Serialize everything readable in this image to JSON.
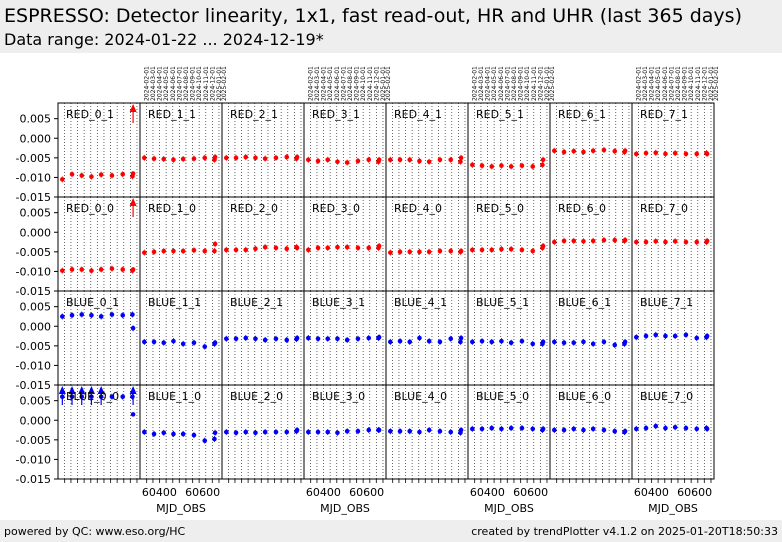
{
  "header": {
    "title": "ESPRESSO: Detector linearity, 1x1, fast read-out, HR and UHR (last 365 days)",
    "subtitle": "Data range: 2024-01-22 ... 2024-12-19*"
  },
  "footer": {
    "left": "powered by QC: www.eso.org/HC",
    "right": "created by trendPlotter v4.1.2 on 2025-01-20T18:50:33"
  },
  "colors": {
    "red": "#ff0000",
    "blue": "#0000ff",
    "band": "#eeeeee"
  },
  "chart_data": {
    "type": "scatter",
    "xlabel": "MJD_OBS",
    "xlim": [
      60310,
      60690
    ],
    "ylim": [
      -0.015,
      0.009
    ],
    "yticks": [
      0.005,
      0.0,
      -0.005,
      -0.01,
      -0.015
    ],
    "ytick_labels": [
      "0.005",
      "0.000",
      "-0.005",
      "-0.010",
      "-0.015"
    ],
    "xticks": [
      60400,
      60600
    ],
    "xtick_labels": [
      "60400",
      "60600"
    ],
    "date_labels": [
      "2024-02-01",
      "2024-03-01",
      "2024-04-01",
      "2024-05-01",
      "2024-06-01",
      "2024-07-01",
      "2024-08-01",
      "2024-09-01",
      "2024-10-01",
      "2024-11-01",
      "2024-12-01",
      "2025-01-01",
      "2025-02-01"
    ],
    "date_mjd": [
      60341,
      60370,
      60401,
      60431,
      60462,
      60492,
      60523,
      60554,
      60584,
      60615,
      60645,
      60676,
      60707
    ],
    "x": [
      60330,
      60375,
      60420,
      60465,
      60510,
      60560,
      60610,
      60655,
      60658
    ],
    "panels": [
      {
        "label": "RED_0_1",
        "color": "red",
        "y": [
          -0.0105,
          -0.0092,
          -0.0095,
          -0.0098,
          -0.0093,
          -0.0095,
          -0.0092,
          -0.0097,
          -0.009
        ],
        "arrows": [
          60658
        ]
      },
      {
        "label": "RED_1_1",
        "color": "red",
        "y": [
          -0.005,
          -0.0052,
          -0.0053,
          -0.0055,
          -0.0053,
          -0.0052,
          -0.005,
          -0.0055,
          -0.0048
        ],
        "arrows": []
      },
      {
        "label": "RED_2_1",
        "color": "red",
        "y": [
          -0.005,
          -0.005,
          -0.0048,
          -0.005,
          -0.0052,
          -0.005,
          -0.0048,
          -0.0052,
          -0.0048
        ],
        "arrows": []
      },
      {
        "label": "RED_3_1",
        "color": "red",
        "y": [
          -0.0055,
          -0.0058,
          -0.0055,
          -0.006,
          -0.0062,
          -0.0058,
          -0.0055,
          -0.006,
          -0.0055
        ],
        "arrows": []
      },
      {
        "label": "RED_4_1",
        "color": "red",
        "y": [
          -0.0055,
          -0.0055,
          -0.0055,
          -0.0058,
          -0.006,
          -0.0055,
          -0.0055,
          -0.006,
          -0.005
        ],
        "arrows": []
      },
      {
        "label": "RED_5_1",
        "color": "red",
        "y": [
          -0.0068,
          -0.007,
          -0.0072,
          -0.007,
          -0.0072,
          -0.007,
          -0.0072,
          -0.0068,
          -0.0055
        ],
        "arrows": []
      },
      {
        "label": "RED_6_1",
        "color": "red",
        "y": [
          -0.0032,
          -0.0035,
          -0.0033,
          -0.0035,
          -0.0032,
          -0.003,
          -0.0033,
          -0.0035,
          -0.0032
        ],
        "arrows": []
      },
      {
        "label": "RED_7_1",
        "color": "red",
        "y": [
          -0.004,
          -0.0038,
          -0.0037,
          -0.004,
          -0.0038,
          -0.004,
          -0.004,
          -0.0038,
          -0.004
        ],
        "arrows": []
      },
      {
        "label": "RED_0_0",
        "color": "red",
        "y": [
          -0.0098,
          -0.0095,
          -0.0095,
          -0.0098,
          -0.0095,
          -0.0093,
          -0.0095,
          -0.0098,
          -0.0095
        ],
        "arrows": [
          60658
        ]
      },
      {
        "label": "RED_1_0",
        "color": "red",
        "y": [
          -0.0052,
          -0.005,
          -0.0048,
          -0.0048,
          -0.0048,
          -0.0046,
          -0.0048,
          -0.0048,
          -0.003
        ],
        "arrows": []
      },
      {
        "label": "RED_2_0",
        "color": "red",
        "y": [
          -0.0045,
          -0.0045,
          -0.0045,
          -0.0042,
          -0.0038,
          -0.004,
          -0.0042,
          -0.0038,
          -0.004
        ],
        "arrows": []
      },
      {
        "label": "RED_3_0",
        "color": "red",
        "y": [
          -0.0045,
          -0.004,
          -0.004,
          -0.0038,
          -0.0038,
          -0.004,
          -0.004,
          -0.004,
          -0.0035
        ],
        "arrows": []
      },
      {
        "label": "RED_4_0",
        "color": "red",
        "y": [
          -0.0052,
          -0.005,
          -0.005,
          -0.005,
          -0.005,
          -0.0048,
          -0.0048,
          -0.005,
          -0.0048
        ],
        "arrows": []
      },
      {
        "label": "RED_5_0",
        "color": "red",
        "y": [
          -0.0045,
          -0.0045,
          -0.0045,
          -0.0043,
          -0.0043,
          -0.0045,
          -0.0048,
          -0.004,
          -0.0035
        ],
        "arrows": []
      },
      {
        "label": "RED_6_0",
        "color": "red",
        "y": [
          -0.0025,
          -0.0022,
          -0.0022,
          -0.0023,
          -0.0022,
          -0.002,
          -0.002,
          -0.0022,
          -0.002
        ],
        "arrows": []
      },
      {
        "label": "RED_7_0",
        "color": "red",
        "y": [
          -0.0025,
          -0.0025,
          -0.0023,
          -0.0025,
          -0.0023,
          -0.0025,
          -0.0025,
          -0.0025,
          -0.0022
        ],
        "arrows": []
      },
      {
        "label": "BLUE_0_1",
        "color": "blue",
        "y": [
          0.0025,
          0.0028,
          0.003,
          0.0028,
          0.0025,
          0.003,
          0.0028,
          0.003,
          -0.0005
        ],
        "arrows": []
      },
      {
        "label": "BLUE_1_1",
        "color": "blue",
        "y": [
          -0.004,
          -0.004,
          -0.0042,
          -0.0038,
          -0.0045,
          -0.0042,
          -0.0052,
          -0.0045,
          -0.0042
        ],
        "arrows": []
      },
      {
        "label": "BLUE_2_1",
        "color": "blue",
        "y": [
          -0.0032,
          -0.0032,
          -0.003,
          -0.0032,
          -0.0035,
          -0.0032,
          -0.0035,
          -0.0033,
          -0.003
        ],
        "arrows": []
      },
      {
        "label": "BLUE_3_1",
        "color": "blue",
        "y": [
          -0.003,
          -0.0032,
          -0.0032,
          -0.0032,
          -0.0035,
          -0.0032,
          -0.003,
          -0.003,
          -0.0028
        ],
        "arrows": []
      },
      {
        "label": "BLUE_4_1",
        "color": "blue",
        "y": [
          -0.004,
          -0.0038,
          -0.004,
          -0.003,
          -0.0038,
          -0.004,
          -0.0032,
          -0.004,
          -0.003
        ],
        "arrows": []
      },
      {
        "label": "BLUE_5_1",
        "color": "blue",
        "y": [
          -0.004,
          -0.0038,
          -0.004,
          -0.0038,
          -0.0042,
          -0.0038,
          -0.0045,
          -0.0045,
          -0.004
        ],
        "arrows": []
      },
      {
        "label": "BLUE_6_1",
        "color": "blue",
        "y": [
          -0.004,
          -0.0042,
          -0.0042,
          -0.004,
          -0.0045,
          -0.004,
          -0.0048,
          -0.0045,
          -0.004
        ],
        "arrows": []
      },
      {
        "label": "BLUE_7_1",
        "color": "blue",
        "y": [
          -0.0028,
          -0.0025,
          -0.0022,
          -0.0025,
          -0.0025,
          -0.0022,
          -0.003,
          -0.0028,
          -0.0025
        ],
        "arrows": []
      },
      {
        "label": "BLUE_0_0",
        "color": "blue",
        "y": [
          0.006,
          0.006,
          0.006,
          0.006,
          0.006,
          0.006,
          0.006,
          0.006,
          0.0015
        ],
        "arrows": [
          60330,
          60375,
          60420,
          60465,
          60510,
          60658
        ]
      },
      {
        "label": "BLUE_1_0",
        "color": "blue",
        "y": [
          -0.003,
          -0.0035,
          -0.0032,
          -0.0035,
          -0.0035,
          -0.0038,
          -0.0052,
          -0.0048,
          -0.0032
        ],
        "arrows": []
      },
      {
        "label": "BLUE_2_0",
        "color": "blue",
        "y": [
          -0.003,
          -0.0032,
          -0.003,
          -0.0032,
          -0.003,
          -0.003,
          -0.003,
          -0.0028,
          -0.0025
        ],
        "arrows": []
      },
      {
        "label": "BLUE_3_0",
        "color": "blue",
        "y": [
          -0.003,
          -0.003,
          -0.003,
          -0.0032,
          -0.0028,
          -0.0028,
          -0.0025,
          -0.0025,
          -0.0025
        ],
        "arrows": []
      },
      {
        "label": "BLUE_4_0",
        "color": "blue",
        "y": [
          -0.0028,
          -0.0028,
          -0.0028,
          -0.003,
          -0.0025,
          -0.0028,
          -0.003,
          -0.0032,
          -0.0025
        ],
        "arrows": []
      },
      {
        "label": "BLUE_5_0",
        "color": "blue",
        "y": [
          -0.0022,
          -0.0022,
          -0.002,
          -0.0022,
          -0.002,
          -0.002,
          -0.0022,
          -0.0025,
          -0.0022
        ],
        "arrows": []
      },
      {
        "label": "BLUE_6_0",
        "color": "blue",
        "y": [
          -0.0025,
          -0.0025,
          -0.0022,
          -0.0025,
          -0.0022,
          -0.0025,
          -0.0028,
          -0.003,
          -0.0028
        ],
        "arrows": []
      },
      {
        "label": "BLUE_7_0",
        "color": "blue",
        "y": [
          -0.0022,
          -0.002,
          -0.0015,
          -0.002,
          -0.0018,
          -0.002,
          -0.0022,
          -0.002,
          -0.0022
        ],
        "arrows": []
      }
    ],
    "xlabel_under_columns": [
      1,
      3,
      5,
      7
    ],
    "date_labels_over_columns": [
      1,
      3,
      5,
      7
    ],
    "grid": "vertical dotted"
  }
}
